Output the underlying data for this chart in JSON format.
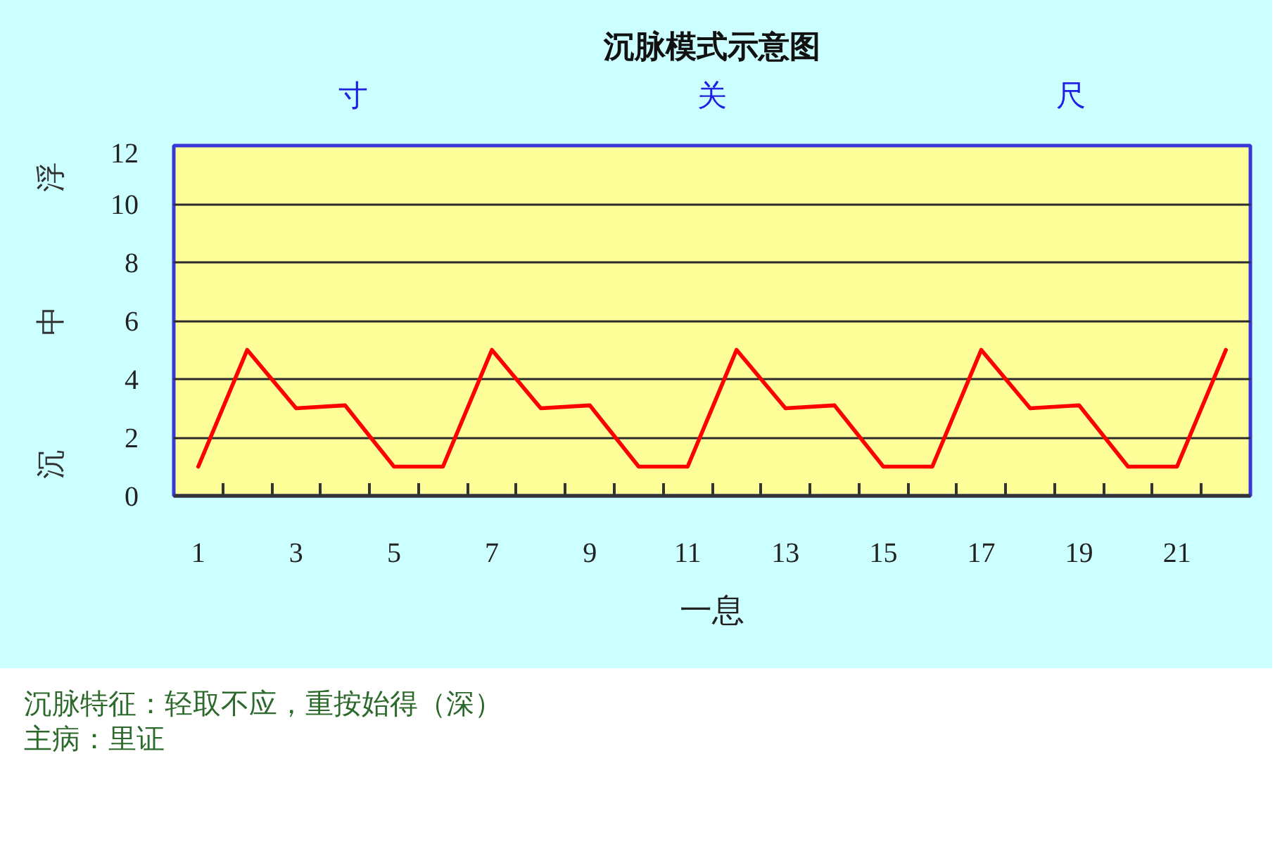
{
  "chart_data": {
    "type": "line",
    "title": "沉脉模式示意图",
    "xlabel": "一息",
    "x": [
      1,
      2,
      3,
      4,
      5,
      6,
      7,
      8,
      9,
      10,
      11,
      12,
      13,
      14,
      15,
      16,
      17,
      18,
      19,
      20,
      21,
      22
    ],
    "series": [
      {
        "color": "#ff0000",
        "values": [
          1,
          5,
          3,
          3.1,
          1,
          1,
          5,
          3,
          3.1,
          1,
          1,
          5,
          3,
          3.1,
          1,
          1,
          5,
          3,
          3.1,
          1,
          1,
          5
        ]
      }
    ],
    "xlim": [
      0.5,
      22.5
    ],
    "xticks": [
      1,
      3,
      5,
      7,
      9,
      11,
      13,
      15,
      17,
      19,
      21,
      {
        "value": 1.5,
        "label": null
      },
      {
        "value": 2.5,
        "label": null
      },
      {
        "value": 3.5,
        "label": null
      },
      {
        "value": 4.5,
        "label": null
      },
      {
        "value": 5.5,
        "label": null
      },
      {
        "value": 6.5,
        "label": null
      },
      {
        "value": 7.5,
        "label": null
      },
      {
        "value": 8.5,
        "label": null
      },
      {
        "value": 9.5,
        "label": null
      },
      {
        "value": 10.5,
        "label": null
      },
      {
        "value": 11.5,
        "label": null
      },
      {
        "value": 12.5,
        "label": null
      },
      {
        "value": 13.5,
        "label": null
      },
      {
        "value": 14.5,
        "label": null
      },
      {
        "value": 15.5,
        "label": null
      },
      {
        "value": 16.5,
        "label": null
      },
      {
        "value": 17.5,
        "label": null
      },
      {
        "value": 18.5,
        "label": null
      },
      {
        "value": 19.5,
        "label": null
      },
      {
        "value": 20.5,
        "label": null
      },
      {
        "value": 21.5,
        "label": null
      }
    ],
    "ylim": [
      0,
      12
    ],
    "yticks": [
      0,
      2,
      4,
      6,
      8,
      10,
      12
    ],
    "grid": "y",
    "line_style": "solid",
    "annotations": [
      "寸",
      "关",
      "尺",
      "浮",
      "中",
      "沉",
      "沉脉特征：轻取不应，重按始得（深）",
      "主病：里证"
    ]
  }
}
